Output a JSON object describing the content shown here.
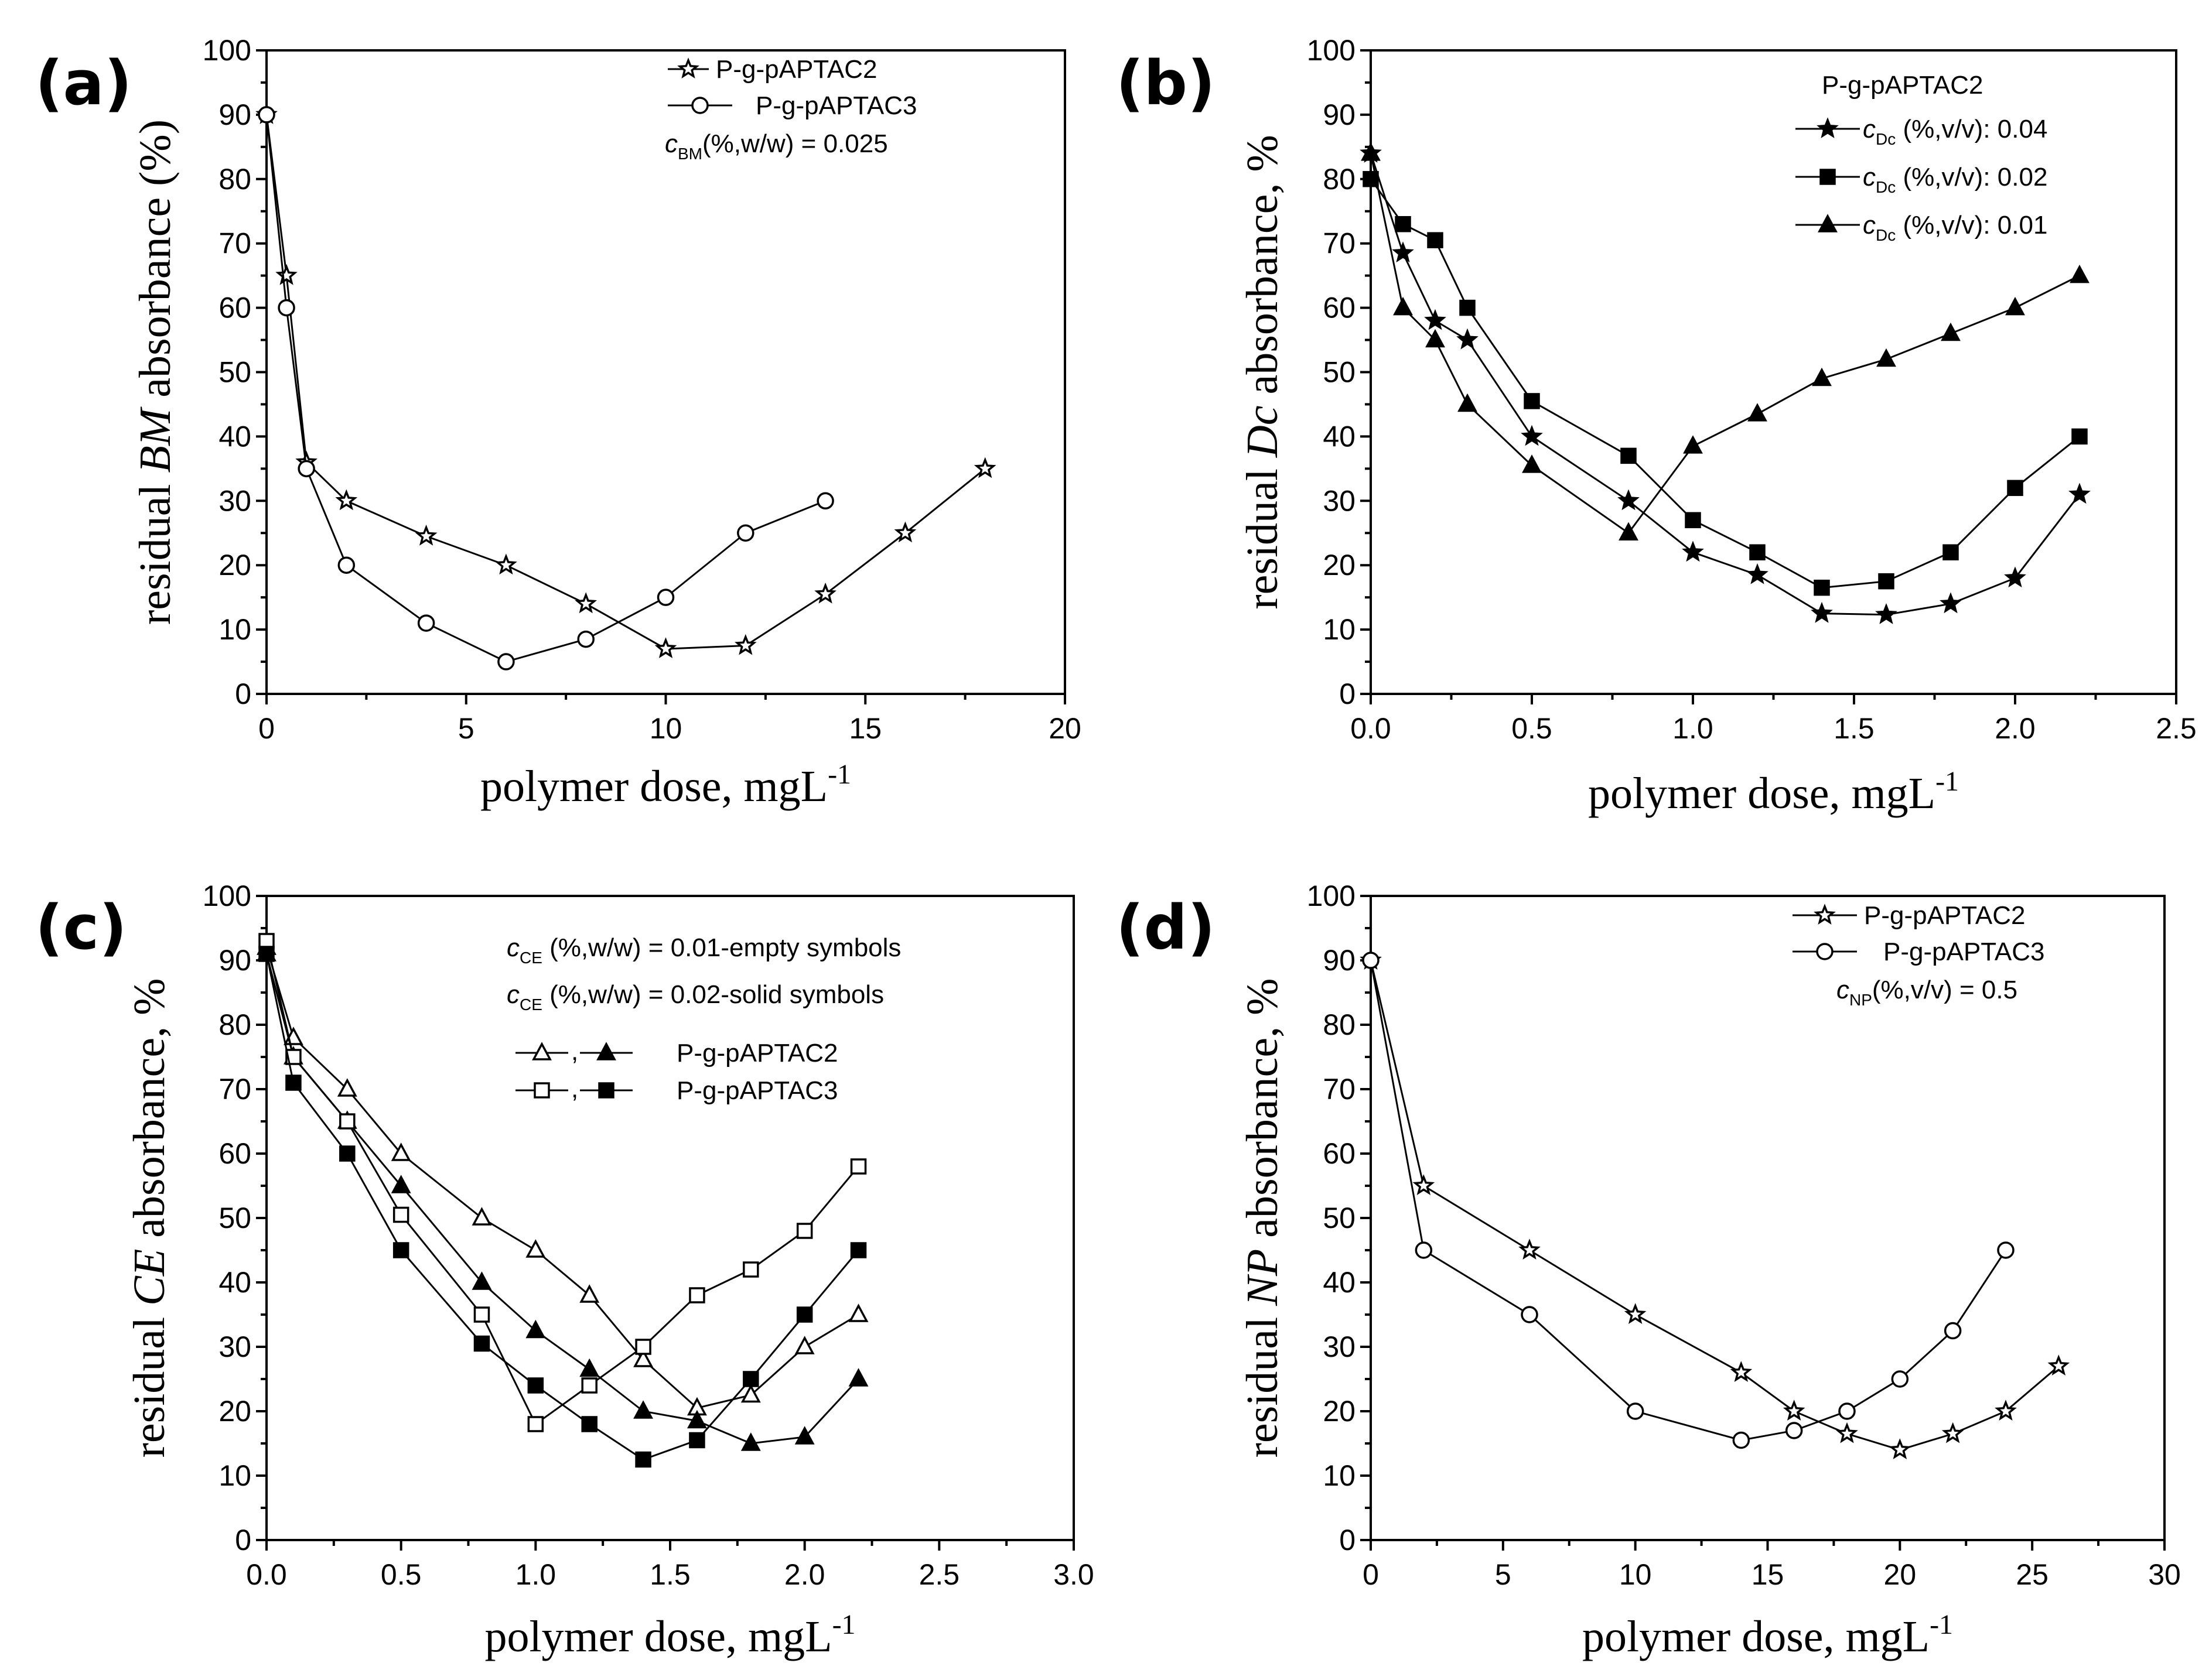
{
  "figure": {
    "panels": [
      {
        "label": "(a)",
        "xlabel_main": "polymer dose, mgL",
        "xlabel_sup": "-1",
        "ylabel_pre": "residual ",
        "ylabel_em": "BM",
        "ylabel_post": " absorbance (%)",
        "legend": {
          "placement": "top-right",
          "header": "",
          "note": {
            "c": "c",
            "sub": "BM",
            "rest": "(%,w/w) = 0.025"
          }
        }
      },
      {
        "label": "(b)",
        "xlabel_main": "polymer dose, mgL",
        "xlabel_sup": "-1",
        "ylabel_pre": "residual ",
        "ylabel_em": "Dc",
        "ylabel_post": " absorbance, %",
        "legend": {
          "placement": "top-right",
          "header": "P-g-pAPTAC2",
          "note": null
        }
      },
      {
        "label": "(c)",
        "xlabel_main": "polymer dose, mgL",
        "xlabel_sup": "-1",
        "ylabel_pre": "residual ",
        "ylabel_em": "CE",
        "ylabel_post": " absorbance, %",
        "legend": {
          "placement": "top-right",
          "header": "",
          "notes": [
            {
              "c": "c",
              "sub": "CE",
              "rest": " (%,w/w) = 0.01-empty symbols"
            },
            {
              "c": "c",
              "sub": "CE",
              "rest": " (%,w/w) = 0.02-solid symbols"
            }
          ],
          "pair_entries": [
            {
              "label": "P-g-pAPTAC2",
              "separator": ",",
              "open_marker": "triangle-open",
              "solid_marker": "triangle-solid"
            },
            {
              "label": "P-g-pAPTAC3",
              "separator": ",",
              "open_marker": "square-open",
              "solid_marker": "square-solid"
            }
          ]
        }
      },
      {
        "label": "(d)",
        "xlabel_main": "polymer dose, mgL",
        "xlabel_sup": "-1",
        "ylabel_pre": "residual ",
        "ylabel_em": "NP",
        "ylabel_post": " absorbance, %",
        "legend": {
          "placement": "top-right",
          "header": "",
          "note": {
            "c": "c",
            "sub": "NP",
            "rest": "(%,v/v) = 0.5"
          }
        }
      }
    ]
  },
  "chart_data": [
    {
      "type": "line",
      "title": "(a)",
      "xlabel": "polymer dose, mgL-1",
      "ylabel": "residual BM absorbance (%)",
      "xlim": [
        0,
        20
      ],
      "ylim": [
        0,
        100
      ],
      "xticks": [
        0,
        5,
        10,
        15,
        20
      ],
      "xtick_labels": [
        "0",
        "5",
        "10",
        "15",
        "20"
      ],
      "yticks": [
        0,
        10,
        20,
        30,
        40,
        50,
        60,
        70,
        80,
        90,
        100
      ],
      "ytick_labels": [
        "0",
        "10",
        "20",
        "30",
        "40",
        "50",
        "60",
        "70",
        "80",
        "90",
        "100"
      ],
      "series": [
        {
          "name": "P-g-pAPTAC2",
          "marker": "star-open",
          "x": [
            0,
            0.5,
            1,
            2,
            4,
            6,
            8,
            10,
            12,
            14,
            16,
            18
          ],
          "y": [
            90,
            65,
            36,
            30,
            24.5,
            20,
            14,
            7,
            7.5,
            15.5,
            25,
            35
          ]
        },
        {
          "name": "P-g-pAPTAC3",
          "marker": "circle-open",
          "x": [
            0,
            0.5,
            1,
            2,
            4,
            6,
            8,
            10,
            12,
            14
          ],
          "y": [
            90,
            60,
            35,
            20,
            11,
            5,
            8.5,
            15,
            25,
            30
          ]
        }
      ]
    },
    {
      "type": "line",
      "title": "(b)",
      "xlabel": "polymer dose, mgL-1",
      "ylabel": "residual Dc absorbance, %",
      "xlim": [
        0,
        2.5
      ],
      "ylim": [
        0,
        100
      ],
      "xticks": [
        0,
        0.5,
        1.0,
        1.5,
        2.0,
        2.5
      ],
      "xtick_labels": [
        "0.0",
        "0.5",
        "1.0",
        "1.5",
        "2.0",
        "2.5"
      ],
      "yticks": [
        0,
        10,
        20,
        30,
        40,
        50,
        60,
        70,
        80,
        90,
        100
      ],
      "ytick_labels": [
        "0",
        "10",
        "20",
        "30",
        "40",
        "50",
        "60",
        "70",
        "80",
        "90",
        "100"
      ],
      "series": [
        {
          "name": "cDc (%,v/v): 0.04",
          "legend_c": "c",
          "legend_sub": "Dc",
          "legend_rest": " (%,v/v): 0.04",
          "marker": "star-solid",
          "x": [
            0,
            0.1,
            0.2,
            0.3,
            0.5,
            0.8,
            1.0,
            1.2,
            1.4,
            1.6,
            1.8,
            2.0,
            2.2
          ],
          "y": [
            84,
            68.5,
            58,
            55,
            40,
            30,
            22,
            18.5,
            12.5,
            12.3,
            14,
            18,
            31
          ]
        },
        {
          "name": "cDc (%,v/v): 0.02",
          "legend_c": "c",
          "legend_sub": "Dc",
          "legend_rest": " (%,v/v): 0.02",
          "marker": "square-solid",
          "x": [
            0,
            0.1,
            0.2,
            0.3,
            0.5,
            0.8,
            1.0,
            1.2,
            1.4,
            1.6,
            1.8,
            2.0,
            2.2
          ],
          "y": [
            80,
            73,
            70.5,
            60,
            45.5,
            37,
            27,
            22,
            16.5,
            17.5,
            22,
            32,
            40
          ]
        },
        {
          "name": "cDc (%,v/v): 0.01",
          "legend_c": "c",
          "legend_sub": "Dc",
          "legend_rest": " (%,v/v): 0.01",
          "marker": "triangle-solid",
          "x": [
            0,
            0.1,
            0.2,
            0.3,
            0.5,
            0.8,
            1.0,
            1.2,
            1.4,
            1.6,
            1.8,
            2.0,
            2.2
          ],
          "y": [
            84,
            60,
            55,
            45,
            35.5,
            25,
            38.5,
            43.5,
            49,
            52,
            56,
            60,
            65
          ]
        }
      ]
    },
    {
      "type": "line",
      "title": "(c)",
      "xlabel": "polymer dose, mgL-1",
      "ylabel": "residual CE absorbance, %",
      "xlim": [
        0,
        3.0
      ],
      "ylim": [
        0,
        100
      ],
      "xticks": [
        0,
        0.5,
        1.0,
        1.5,
        2.0,
        2.5,
        3.0
      ],
      "xtick_labels": [
        "0.0",
        "0.5",
        "1.0",
        "1.5",
        "2.0",
        "2.5",
        "3.0"
      ],
      "yticks": [
        0,
        10,
        20,
        30,
        40,
        50,
        60,
        70,
        80,
        90,
        100
      ],
      "ytick_labels": [
        "0",
        "10",
        "20",
        "30",
        "40",
        "50",
        "60",
        "70",
        "80",
        "90",
        "100"
      ],
      "series": [
        {
          "name": "P-g-pAPTAC2 (0.01)",
          "marker": "triangle-open",
          "x": [
            0,
            0.1,
            0.3,
            0.5,
            0.8,
            1.0,
            1.2,
            1.4,
            1.6,
            1.8,
            2.0,
            2.2
          ],
          "y": [
            92,
            78,
            70,
            60,
            50,
            45,
            38,
            28,
            20.5,
            22.5,
            30,
            35
          ]
        },
        {
          "name": "P-g-pAPTAC2 (0.02)",
          "marker": "triangle-solid",
          "x": [
            0,
            0.1,
            0.3,
            0.5,
            0.8,
            1.0,
            1.2,
            1.4,
            1.6,
            1.8,
            2.0,
            2.2
          ],
          "y": [
            91,
            75,
            65,
            55,
            40,
            32.5,
            26.5,
            20,
            18.5,
            15,
            16,
            25
          ]
        },
        {
          "name": "P-g-pAPTAC3 (0.01)",
          "marker": "square-open",
          "x": [
            0,
            0.1,
            0.3,
            0.5,
            0.8,
            1.0,
            1.2,
            1.4,
            1.6,
            1.8,
            2.0,
            2.2
          ],
          "y": [
            93,
            75,
            65,
            50.5,
            35,
            18,
            24,
            30,
            38,
            42,
            48,
            58
          ]
        },
        {
          "name": "P-g-pAPTAC3 (0.02)",
          "marker": "square-solid",
          "x": [
            0,
            0.1,
            0.3,
            0.5,
            0.8,
            1.0,
            1.2,
            1.4,
            1.6,
            1.8,
            2.0,
            2.2
          ],
          "y": [
            91,
            71,
            60,
            45,
            30.5,
            24,
            18,
            12.5,
            15.5,
            25,
            35,
            45
          ]
        }
      ]
    },
    {
      "type": "line",
      "title": "(d)",
      "xlabel": "polymer dose, mgL-1",
      "ylabel": "residual NP absorbance, %",
      "xlim": [
        0,
        30
      ],
      "ylim": [
        0,
        100
      ],
      "xticks": [
        0,
        5,
        10,
        15,
        20,
        25,
        30
      ],
      "xtick_labels": [
        "0",
        "5",
        "10",
        "15",
        "20",
        "25",
        "30"
      ],
      "yticks": [
        0,
        10,
        20,
        30,
        40,
        50,
        60,
        70,
        80,
        90,
        100
      ],
      "ytick_labels": [
        "0",
        "10",
        "20",
        "30",
        "40",
        "50",
        "60",
        "70",
        "80",
        "90",
        "100"
      ],
      "series": [
        {
          "name": "P-g-pAPTAC2",
          "marker": "star-open",
          "x": [
            0,
            2,
            6,
            10,
            14,
            16,
            18,
            20,
            22,
            24,
            26
          ],
          "y": [
            90,
            55,
            45,
            35,
            26,
            20,
            16.5,
            14,
            16.5,
            20,
            27
          ]
        },
        {
          "name": "P-g-pAPTAC3",
          "marker": "circle-open",
          "x": [
            0,
            2,
            6,
            10,
            14,
            16,
            18,
            20,
            22,
            24
          ],
          "y": [
            90,
            45,
            35,
            20,
            15.5,
            17,
            20,
            25,
            32.5,
            45
          ]
        }
      ]
    }
  ]
}
